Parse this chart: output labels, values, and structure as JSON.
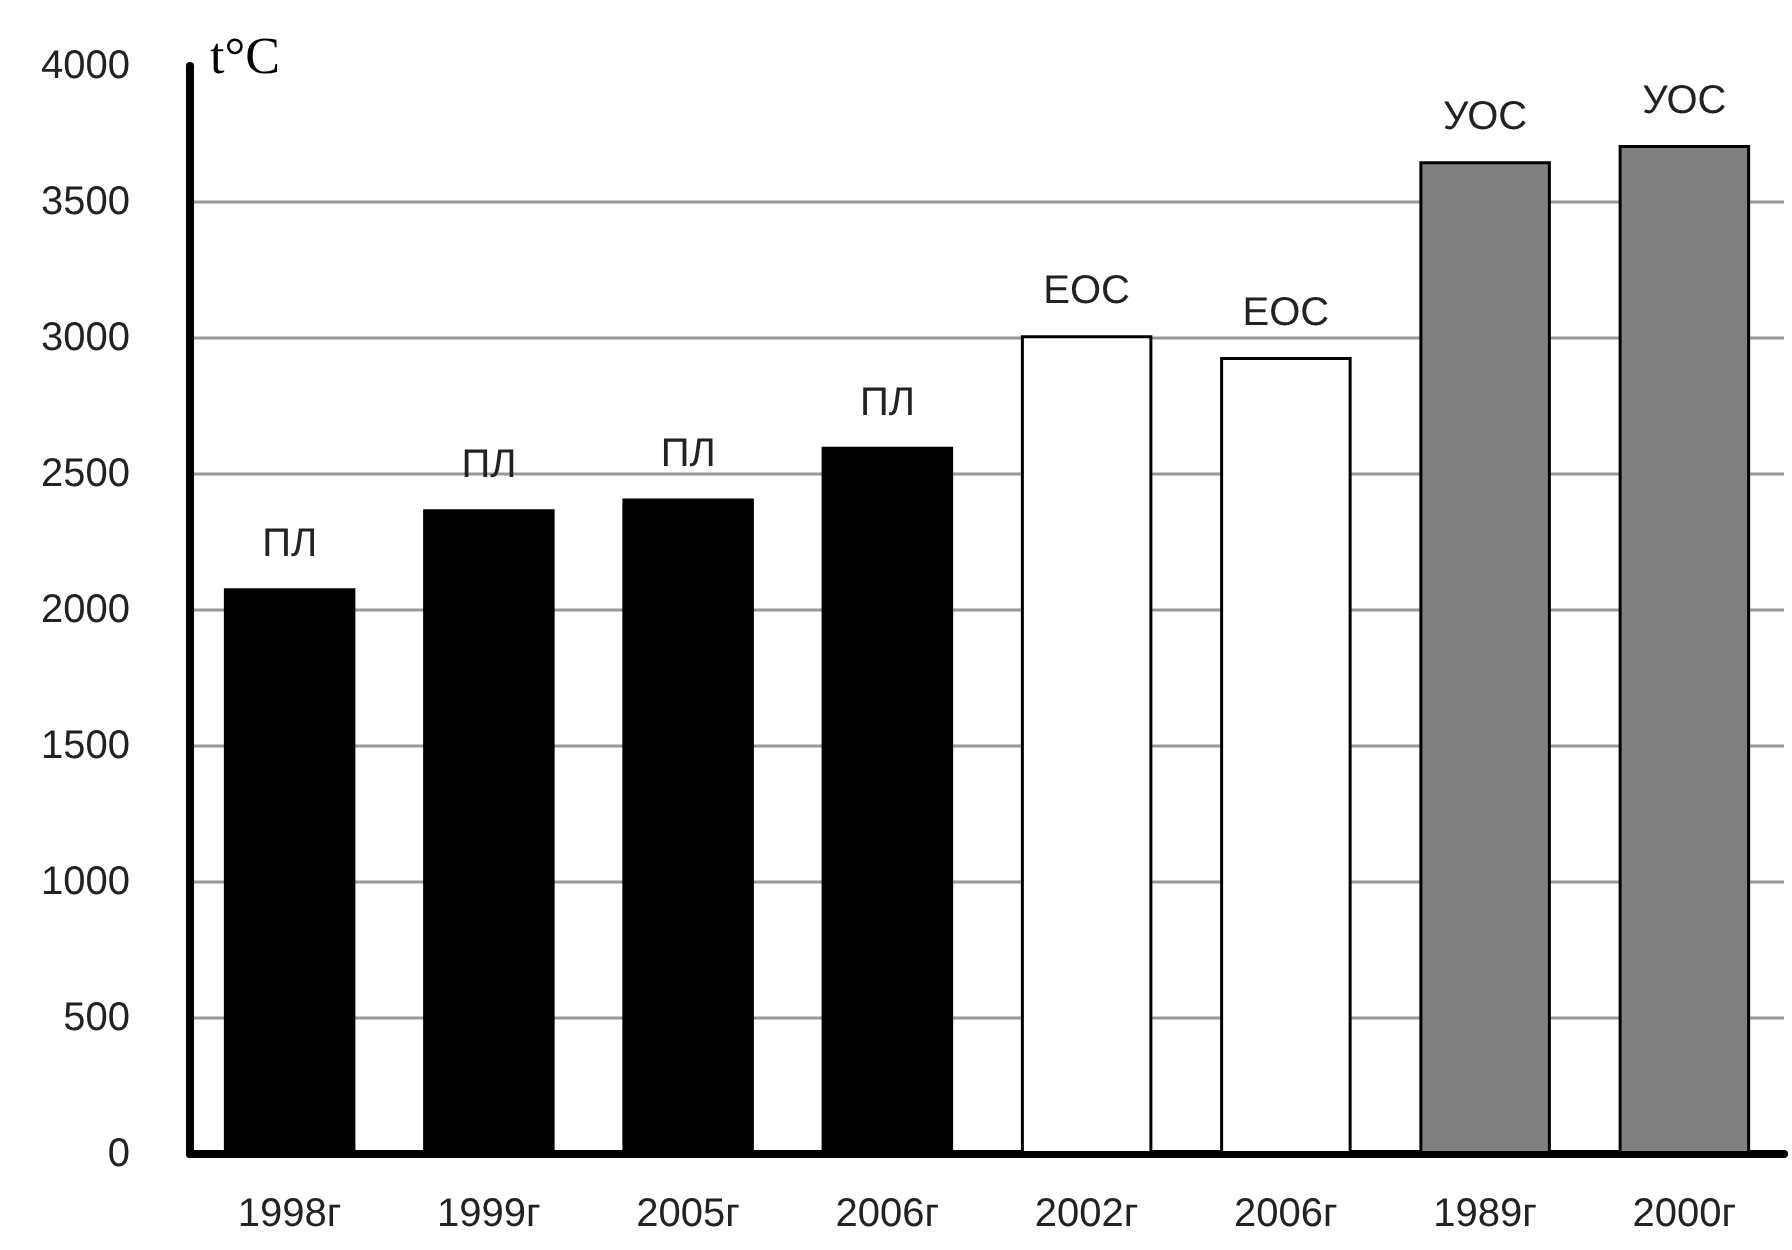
{
  "chart_data": {
    "type": "bar",
    "ylabel": "t°C",
    "categories": [
      "1998г",
      "1999г",
      "2005г",
      "2006г",
      "2002г",
      "2006г",
      "1989г",
      "2000г"
    ],
    "values": [
      2080,
      2370,
      2410,
      2600,
      3010,
      2930,
      3650,
      3710
    ],
    "colors": [
      "#000000",
      "#000000",
      "#000000",
      "#000000",
      "#ffffff",
      "#ffffff",
      "#808080",
      "#808080"
    ],
    "value_labels": [
      "ПЛ",
      "ПЛ",
      "ПЛ",
      "ПЛ",
      "ЕОС",
      "ЕОС",
      "УОС",
      "УОС"
    ],
    "ylim": [
      0,
      4000
    ],
    "yticks": [
      0,
      500,
      1000,
      1500,
      2000,
      2500,
      3000,
      3500,
      4000
    ],
    "grid": "y"
  }
}
